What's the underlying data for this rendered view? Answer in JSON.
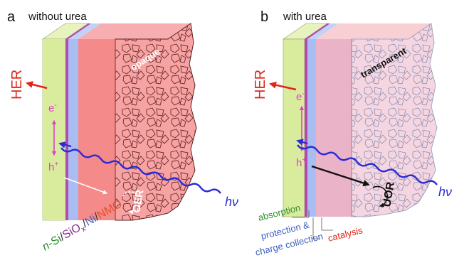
{
  "panel_a": {
    "letter": "a",
    "title": "without urea",
    "opacity_label": "opaque",
    "her_label": "HER",
    "electron": "e",
    "electron_sup": "-",
    "hole": "h",
    "hole_sup": "+",
    "reaction": "OER",
    "light": "hν",
    "material_parts": [
      {
        "text": "n",
        "color": "#2e8b2e",
        "italic": true
      },
      {
        "text": "-Si",
        "color": "#2e8b2e"
      },
      {
        "text": "/",
        "color": "#333333"
      },
      {
        "text": "SiO",
        "color": "#8b2a8b"
      },
      {
        "text": "x",
        "color": "#8b2a8b",
        "sub": true
      },
      {
        "text": "/",
        "color": "#333333"
      },
      {
        "text": "Ni",
        "color": "#3f5fbf"
      },
      {
        "text": "/",
        "color": "#333333"
      },
      {
        "text": "NMO",
        "color": "#e2502a"
      }
    ]
  },
  "panel_b": {
    "letter": "b",
    "title": "with urea",
    "opacity_label": "transparent",
    "her_label": "HER",
    "electron": "e",
    "electron_sup": "-",
    "hole": "h",
    "hole_sup": "+",
    "reaction": "UOR",
    "light": "hν",
    "label_absorption": "absorption",
    "label_protection_1": "protection &",
    "label_protection_2": "charge collection",
    "label_catalysis": "catalysis"
  },
  "colors": {
    "silicon": "#d9ec9e",
    "silicon_side": "#e7f3bd",
    "oxide": "#b44ab0",
    "nickel": "#a9bdf2",
    "nmo": "#f58a8a",
    "nmo_top": "#f7aeb0",
    "her_red": "#e2231a",
    "carrier_magenta": "#e040c8",
    "light_blue": "#2b2bd8",
    "green_text": "#2e8b2e",
    "blue_text": "#3f5fbf",
    "red_text": "#e2231a"
  }
}
